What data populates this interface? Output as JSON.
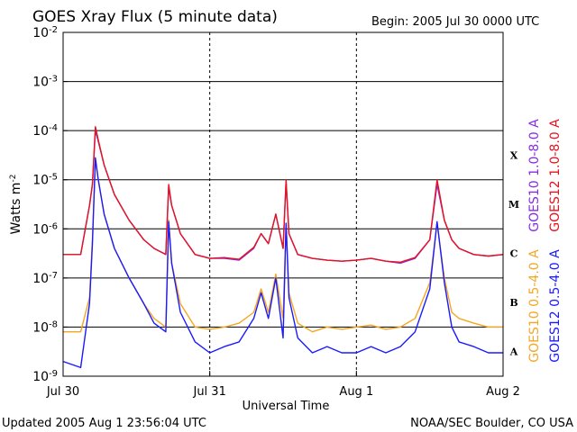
{
  "chart_data": {
    "type": "line",
    "title": "GOES Xray Flux (5 minute data)",
    "begin_label": "Begin:  2005 Jul 30 0000 UTC",
    "xlabel": "Universal Time",
    "ylabel_main": "Watts m",
    "ylabel_sup": "-2",
    "y_scale": "log",
    "ylim": [
      1e-09,
      0.01
    ],
    "y_ticks": [
      {
        "base": "10",
        "exp": "-2"
      },
      {
        "base": "10",
        "exp": "-3"
      },
      {
        "base": "10",
        "exp": "-4"
      },
      {
        "base": "10",
        "exp": "-5"
      },
      {
        "base": "10",
        "exp": "-6"
      },
      {
        "base": "10",
        "exp": "-7"
      },
      {
        "base": "10",
        "exp": "-8"
      },
      {
        "base": "10",
        "exp": "-9"
      }
    ],
    "x_ticks": [
      "Jul 30",
      "Jul 31",
      "Aug 1",
      "Aug 2"
    ],
    "xlim_days": [
      0,
      3
    ],
    "flare_classes": [
      "X",
      "M",
      "C",
      "B",
      "A"
    ],
    "grid": true,
    "colors": {
      "goes10_long": "#8a2be2",
      "goes12_long": "#e4141e",
      "goes10_short": "#f5a623",
      "goes12_short": "#1a1aff",
      "grid": "#000000"
    },
    "series": [
      {
        "name": "GOES10 1.0-8.0 A",
        "key": "goes10_long",
        "x": [
          0.0,
          0.12,
          0.18,
          0.2,
          0.22,
          0.24,
          0.28,
          0.35,
          0.45,
          0.55,
          0.62,
          0.7,
          0.72,
          0.74,
          0.8,
          0.9,
          1.0,
          1.1,
          1.2,
          1.3,
          1.35,
          1.4,
          1.45,
          1.5,
          1.52,
          1.54,
          1.6,
          1.7,
          1.8,
          1.9,
          2.0,
          2.1,
          2.2,
          2.3,
          2.4,
          2.5,
          2.55,
          2.6,
          2.65,
          2.7,
          2.8,
          2.9,
          3.0
        ],
        "y": [
          3e-07,
          3e-07,
          3e-06,
          8e-06,
          0.0001,
          6e-05,
          2e-05,
          5e-06,
          1.5e-06,
          6e-07,
          4e-07,
          3e-07,
          7e-06,
          3e-06,
          8e-07,
          3e-07,
          2.5e-07,
          2.5e-07,
          2.3e-07,
          4e-07,
          8e-07,
          5e-07,
          2e-06,
          4e-07,
          9e-06,
          8e-07,
          3e-07,
          2.5e-07,
          2.3e-07,
          2.2e-07,
          2.3e-07,
          2.5e-07,
          2.2e-07,
          2e-07,
          2.5e-07,
          6e-07,
          8e-06,
          1.5e-06,
          6e-07,
          4e-07,
          3e-07,
          2.8e-07,
          3e-07
        ]
      },
      {
        "name": "GOES12 1.0-8.0 A",
        "key": "goes12_long",
        "x": [
          0.0,
          0.12,
          0.18,
          0.2,
          0.22,
          0.24,
          0.28,
          0.35,
          0.45,
          0.55,
          0.62,
          0.7,
          0.72,
          0.74,
          0.8,
          0.9,
          1.0,
          1.1,
          1.2,
          1.3,
          1.35,
          1.4,
          1.45,
          1.5,
          1.52,
          1.54,
          1.6,
          1.7,
          1.8,
          1.9,
          2.0,
          2.1,
          2.2,
          2.3,
          2.4,
          2.5,
          2.55,
          2.6,
          2.65,
          2.7,
          2.8,
          2.9,
          3.0
        ],
        "y": [
          3e-07,
          3e-07,
          3e-06,
          8e-06,
          0.00012,
          6.5e-05,
          2e-05,
          5e-06,
          1.5e-06,
          6e-07,
          4e-07,
          3e-07,
          8e-06,
          3e-06,
          8e-07,
          3e-07,
          2.5e-07,
          2.6e-07,
          2.4e-07,
          4.2e-07,
          8e-07,
          5e-07,
          2e-06,
          4e-07,
          1e-05,
          8e-07,
          3e-07,
          2.5e-07,
          2.3e-07,
          2.2e-07,
          2.3e-07,
          2.5e-07,
          2.2e-07,
          2.1e-07,
          2.6e-07,
          6e-07,
          1e-05,
          1.5e-06,
          6e-07,
          4e-07,
          3e-07,
          2.8e-07,
          3e-07
        ]
      },
      {
        "name": "GOES10 0.5-4.0 A",
        "key": "goes10_short",
        "x": [
          0.0,
          0.12,
          0.18,
          0.2,
          0.22,
          0.24,
          0.28,
          0.35,
          0.45,
          0.55,
          0.62,
          0.7,
          0.72,
          0.74,
          0.8,
          0.9,
          1.0,
          1.1,
          1.2,
          1.3,
          1.35,
          1.4,
          1.45,
          1.5,
          1.52,
          1.54,
          1.6,
          1.7,
          1.8,
          1.9,
          2.0,
          2.1,
          2.2,
          2.3,
          2.4,
          2.5,
          2.55,
          2.6,
          2.65,
          2.7,
          2.8,
          2.9,
          3.0
        ],
        "y": [
          8e-09,
          8e-09,
          4e-08,
          6e-07,
          2.5e-05,
          1e-05,
          2e-06,
          4e-07,
          1e-07,
          3e-08,
          1.5e-08,
          1e-08,
          1.5e-06,
          2e-07,
          3e-08,
          1e-08,
          9e-09,
          1e-08,
          1.2e-08,
          2e-08,
          6e-08,
          2e-08,
          1.2e-07,
          1.5e-08,
          1.3e-06,
          5e-08,
          1.2e-08,
          8e-09,
          1e-08,
          9e-09,
          1e-08,
          1.1e-08,
          9e-09,
          1e-08,
          1.5e-08,
          8e-08,
          1.3e-06,
          1e-07,
          2e-08,
          1.5e-08,
          1.2e-08,
          1e-08,
          1e-08
        ]
      },
      {
        "name": "GOES12 0.5-4.0 A",
        "key": "goes12_short",
        "x": [
          0.0,
          0.12,
          0.18,
          0.2,
          0.22,
          0.24,
          0.28,
          0.35,
          0.45,
          0.55,
          0.62,
          0.7,
          0.72,
          0.74,
          0.8,
          0.9,
          1.0,
          1.1,
          1.2,
          1.3,
          1.35,
          1.4,
          1.45,
          1.5,
          1.52,
          1.54,
          1.6,
          1.7,
          1.8,
          1.9,
          2.0,
          2.1,
          2.2,
          2.3,
          2.4,
          2.5,
          2.55,
          2.6,
          2.65,
          2.7,
          2.8,
          2.9,
          3.0
        ],
        "y": [
          2e-09,
          1.5e-09,
          3e-08,
          5e-07,
          2.8e-05,
          1e-05,
          2e-06,
          4e-07,
          1e-07,
          3e-08,
          1.2e-08,
          8e-09,
          1.4e-06,
          2e-07,
          2e-08,
          5e-09,
          3e-09,
          4e-09,
          5e-09,
          1.5e-08,
          5e-08,
          1.5e-08,
          1e-07,
          6e-09,
          1.3e-06,
          4e-08,
          6e-09,
          3e-09,
          4e-09,
          3e-09,
          3e-09,
          4e-09,
          3e-09,
          4e-09,
          8e-09,
          6e-08,
          1.4e-06,
          8e-08,
          1e-08,
          5e-09,
          4e-09,
          3e-09,
          3e-09
        ]
      }
    ]
  },
  "footer": {
    "updated": "Updated 2005 Aug  1 23:56:04 UTC",
    "credit": "NOAA/SEC Boulder, CO USA"
  }
}
